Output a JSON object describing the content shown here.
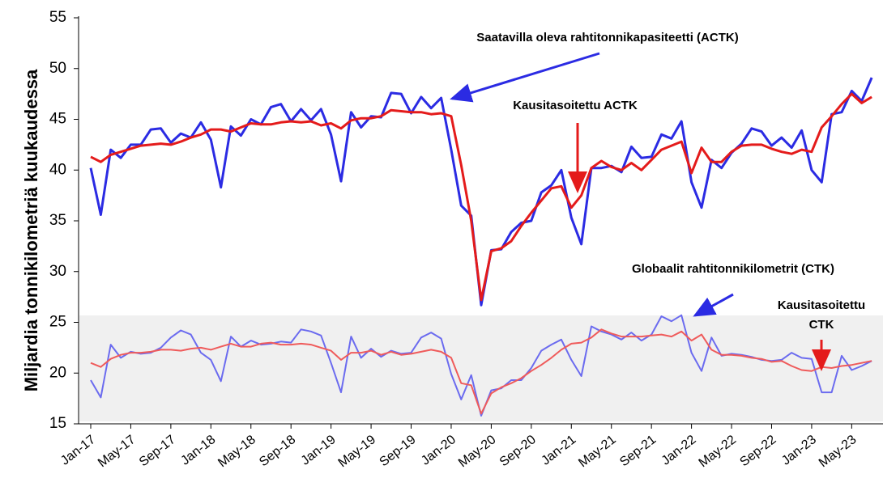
{
  "chart_data": {
    "type": "line",
    "ylabel": "Miljardia tonnikilometriä kuukaudessa",
    "categories": [
      "Jan-17",
      null,
      null,
      null,
      "May-17",
      null,
      null,
      null,
      "Sep-17",
      null,
      null,
      null,
      "Jan-18",
      null,
      null,
      null,
      "May-18",
      null,
      null,
      null,
      "Sep-18",
      null,
      null,
      null,
      "Jan-19",
      null,
      null,
      null,
      "May-19",
      null,
      null,
      null,
      "Sep-19",
      null,
      null,
      null,
      "Jan-20",
      null,
      null,
      null,
      "May-20",
      null,
      null,
      null,
      "Sep-20",
      null,
      null,
      null,
      "Jan-21",
      null,
      null,
      null,
      "May-21",
      null,
      null,
      null,
      "Sep-21",
      null,
      null,
      null,
      "Jan-22",
      null,
      null,
      null,
      "May-22",
      null,
      null,
      null,
      "Sep-22",
      null,
      null,
      null,
      "Jan-23",
      null,
      null,
      null,
      "May-23",
      null,
      null
    ],
    "ylim": [
      15,
      55
    ],
    "yticks": [
      15,
      20,
      25,
      30,
      35,
      40,
      45,
      50,
      55
    ],
    "series": [
      {
        "name": "Saatavilla oleva rahtitonnikapasiteetti (ACTK)",
        "color": "#2b2be3",
        "values": [
          40.2,
          35.6,
          42.0,
          41.2,
          42.5,
          42.5,
          44.0,
          44.1,
          42.7,
          43.6,
          43.2,
          44.7,
          43.0,
          38.3,
          44.3,
          43.4,
          45.0,
          44.5,
          46.2,
          46.5,
          44.8,
          46.0,
          44.9,
          46.0,
          43.5,
          38.9,
          45.7,
          44.2,
          45.3,
          45.2,
          47.6,
          47.5,
          45.6,
          47.2,
          46.1,
          47.1,
          42.0,
          36.5,
          35.5,
          26.7,
          32.1,
          32.2,
          33.9,
          34.8,
          35.0,
          37.8,
          38.5,
          40.0,
          35.3,
          32.7,
          40.2,
          40.2,
          40.4,
          39.8,
          42.3,
          41.2,
          41.3,
          43.5,
          43.1,
          44.8,
          38.8,
          36.3,
          41.0,
          40.2,
          41.7,
          42.6,
          44.1,
          43.8,
          42.4,
          43.2,
          42.2,
          43.9,
          40.0,
          38.8,
          45.5,
          45.7,
          47.8,
          46.8,
          49.1
        ]
      },
      {
        "name": "Kausitasoitettu ACTK",
        "color": "#e41b1b",
        "values": [
          41.3,
          40.8,
          41.5,
          41.8,
          42.1,
          42.4,
          42.5,
          42.6,
          42.5,
          42.8,
          43.2,
          43.5,
          44.0,
          44.0,
          43.8,
          44.2,
          44.6,
          44.5,
          44.5,
          44.7,
          44.8,
          44.7,
          44.8,
          44.4,
          44.6,
          44.1,
          44.9,
          45.1,
          45.1,
          45.3,
          45.9,
          45.8,
          45.7,
          45.7,
          45.5,
          45.6,
          45.3,
          40.5,
          35.0,
          27.2,
          32.0,
          32.3,
          33.0,
          34.5,
          35.8,
          37.0,
          38.2,
          38.4,
          36.3,
          37.5,
          40.2,
          40.9,
          40.3,
          40.0,
          40.7,
          40.0,
          41.0,
          42.0,
          42.4,
          42.8,
          39.7,
          42.2,
          40.8,
          40.8,
          41.8,
          42.4,
          42.5,
          42.5,
          42.1,
          41.8,
          41.6,
          42.0,
          41.8,
          44.2,
          45.3,
          46.5,
          47.5,
          46.6,
          47.2
        ]
      },
      {
        "name": "Globaalit rahtitonnikilometrit (CTK)",
        "color": "#6b6bef",
        "values": [
          19.3,
          17.6,
          22.8,
          21.5,
          22.1,
          21.9,
          22.0,
          22.5,
          23.5,
          24.2,
          23.8,
          22.0,
          21.3,
          19.2,
          23.6,
          22.6,
          23.2,
          22.8,
          22.9,
          23.1,
          23.0,
          24.3,
          24.1,
          23.7,
          21.0,
          18.1,
          23.6,
          21.5,
          22.4,
          21.6,
          22.2,
          21.9,
          22.0,
          23.5,
          24.0,
          23.4,
          19.9,
          17.4,
          19.8,
          15.8,
          18.3,
          18.5,
          19.3,
          19.3,
          20.5,
          22.2,
          22.8,
          23.3,
          21.3,
          19.7,
          24.6,
          24.1,
          23.8,
          23.3,
          24.0,
          23.2,
          23.8,
          25.6,
          25.1,
          25.7,
          22.0,
          20.2,
          23.5,
          21.7,
          21.9,
          21.8,
          21.6,
          21.3,
          21.2,
          21.3,
          22.0,
          21.5,
          21.4,
          18.1,
          18.1,
          21.7,
          20.3,
          20.7,
          21.2
        ]
      },
      {
        "name": "Kausitasoitettu CTK",
        "color": "#ef5b5b",
        "values": [
          21.0,
          20.6,
          21.4,
          21.8,
          22.0,
          22.0,
          22.1,
          22.3,
          22.3,
          22.2,
          22.4,
          22.5,
          22.3,
          22.6,
          22.9,
          22.6,
          22.6,
          22.9,
          23.0,
          22.8,
          22.8,
          22.9,
          22.8,
          22.5,
          22.2,
          21.3,
          22.0,
          22.0,
          22.2,
          21.8,
          22.1,
          21.8,
          21.9,
          22.1,
          22.3,
          22.1,
          21.5,
          19.0,
          18.8,
          16.0,
          18.0,
          18.6,
          19.0,
          19.5,
          20.2,
          20.8,
          21.5,
          22.3,
          22.9,
          23.0,
          23.5,
          24.3,
          23.9,
          23.6,
          23.6,
          23.6,
          23.7,
          23.8,
          23.6,
          24.1,
          23.2,
          23.8,
          22.3,
          21.8,
          21.8,
          21.7,
          21.5,
          21.4,
          21.1,
          21.2,
          20.7,
          20.3,
          20.2,
          20.6,
          20.5,
          20.7,
          20.8,
          21.0,
          21.2
        ]
      }
    ]
  }
}
